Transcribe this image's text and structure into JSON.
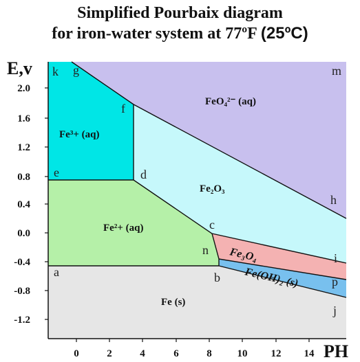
{
  "title": {
    "line1": "Simplified Pourbaix diagram",
    "line2_main": "for iron-water system at 77ºF",
    "line2_tail": "(25ºC)"
  },
  "axes": {
    "ylabel": "E,v",
    "xlabel": "PH",
    "yticks": [
      "2.0",
      "1.6",
      "1.2",
      "0.8",
      "0.4",
      "0.0",
      "-0.4",
      "-0.8",
      "-1.2"
    ],
    "xticks": [
      "0",
      "2",
      "4",
      "6",
      "8",
      "10",
      "12",
      "14"
    ]
  },
  "regions": {
    "fe3": "Fe³+ (aq)",
    "fe2": "Fe²+ (aq)",
    "fe2o3": "Fe₂O₃",
    "feo4": "FeO₄²⁻ (aq)",
    "fe3o4": "Fe₃O₄",
    "feoh2": "Fe(OH)₂ (s)",
    "fe": "Fe (s)"
  },
  "points": [
    "k",
    "g",
    "f",
    "e",
    "d",
    "c",
    "n",
    "a",
    "b",
    "m",
    "h",
    "i",
    "p",
    "j"
  ],
  "colors": {
    "fe3": "#00e6e6",
    "fe2": "#b5f0a8",
    "fe2o3": "#c6f8fb",
    "feo4": "#c8c0ee",
    "fe3o4": "#f4b2b2",
    "feoh2": "#78c0ee",
    "fe": "#e6e6e6"
  }
}
